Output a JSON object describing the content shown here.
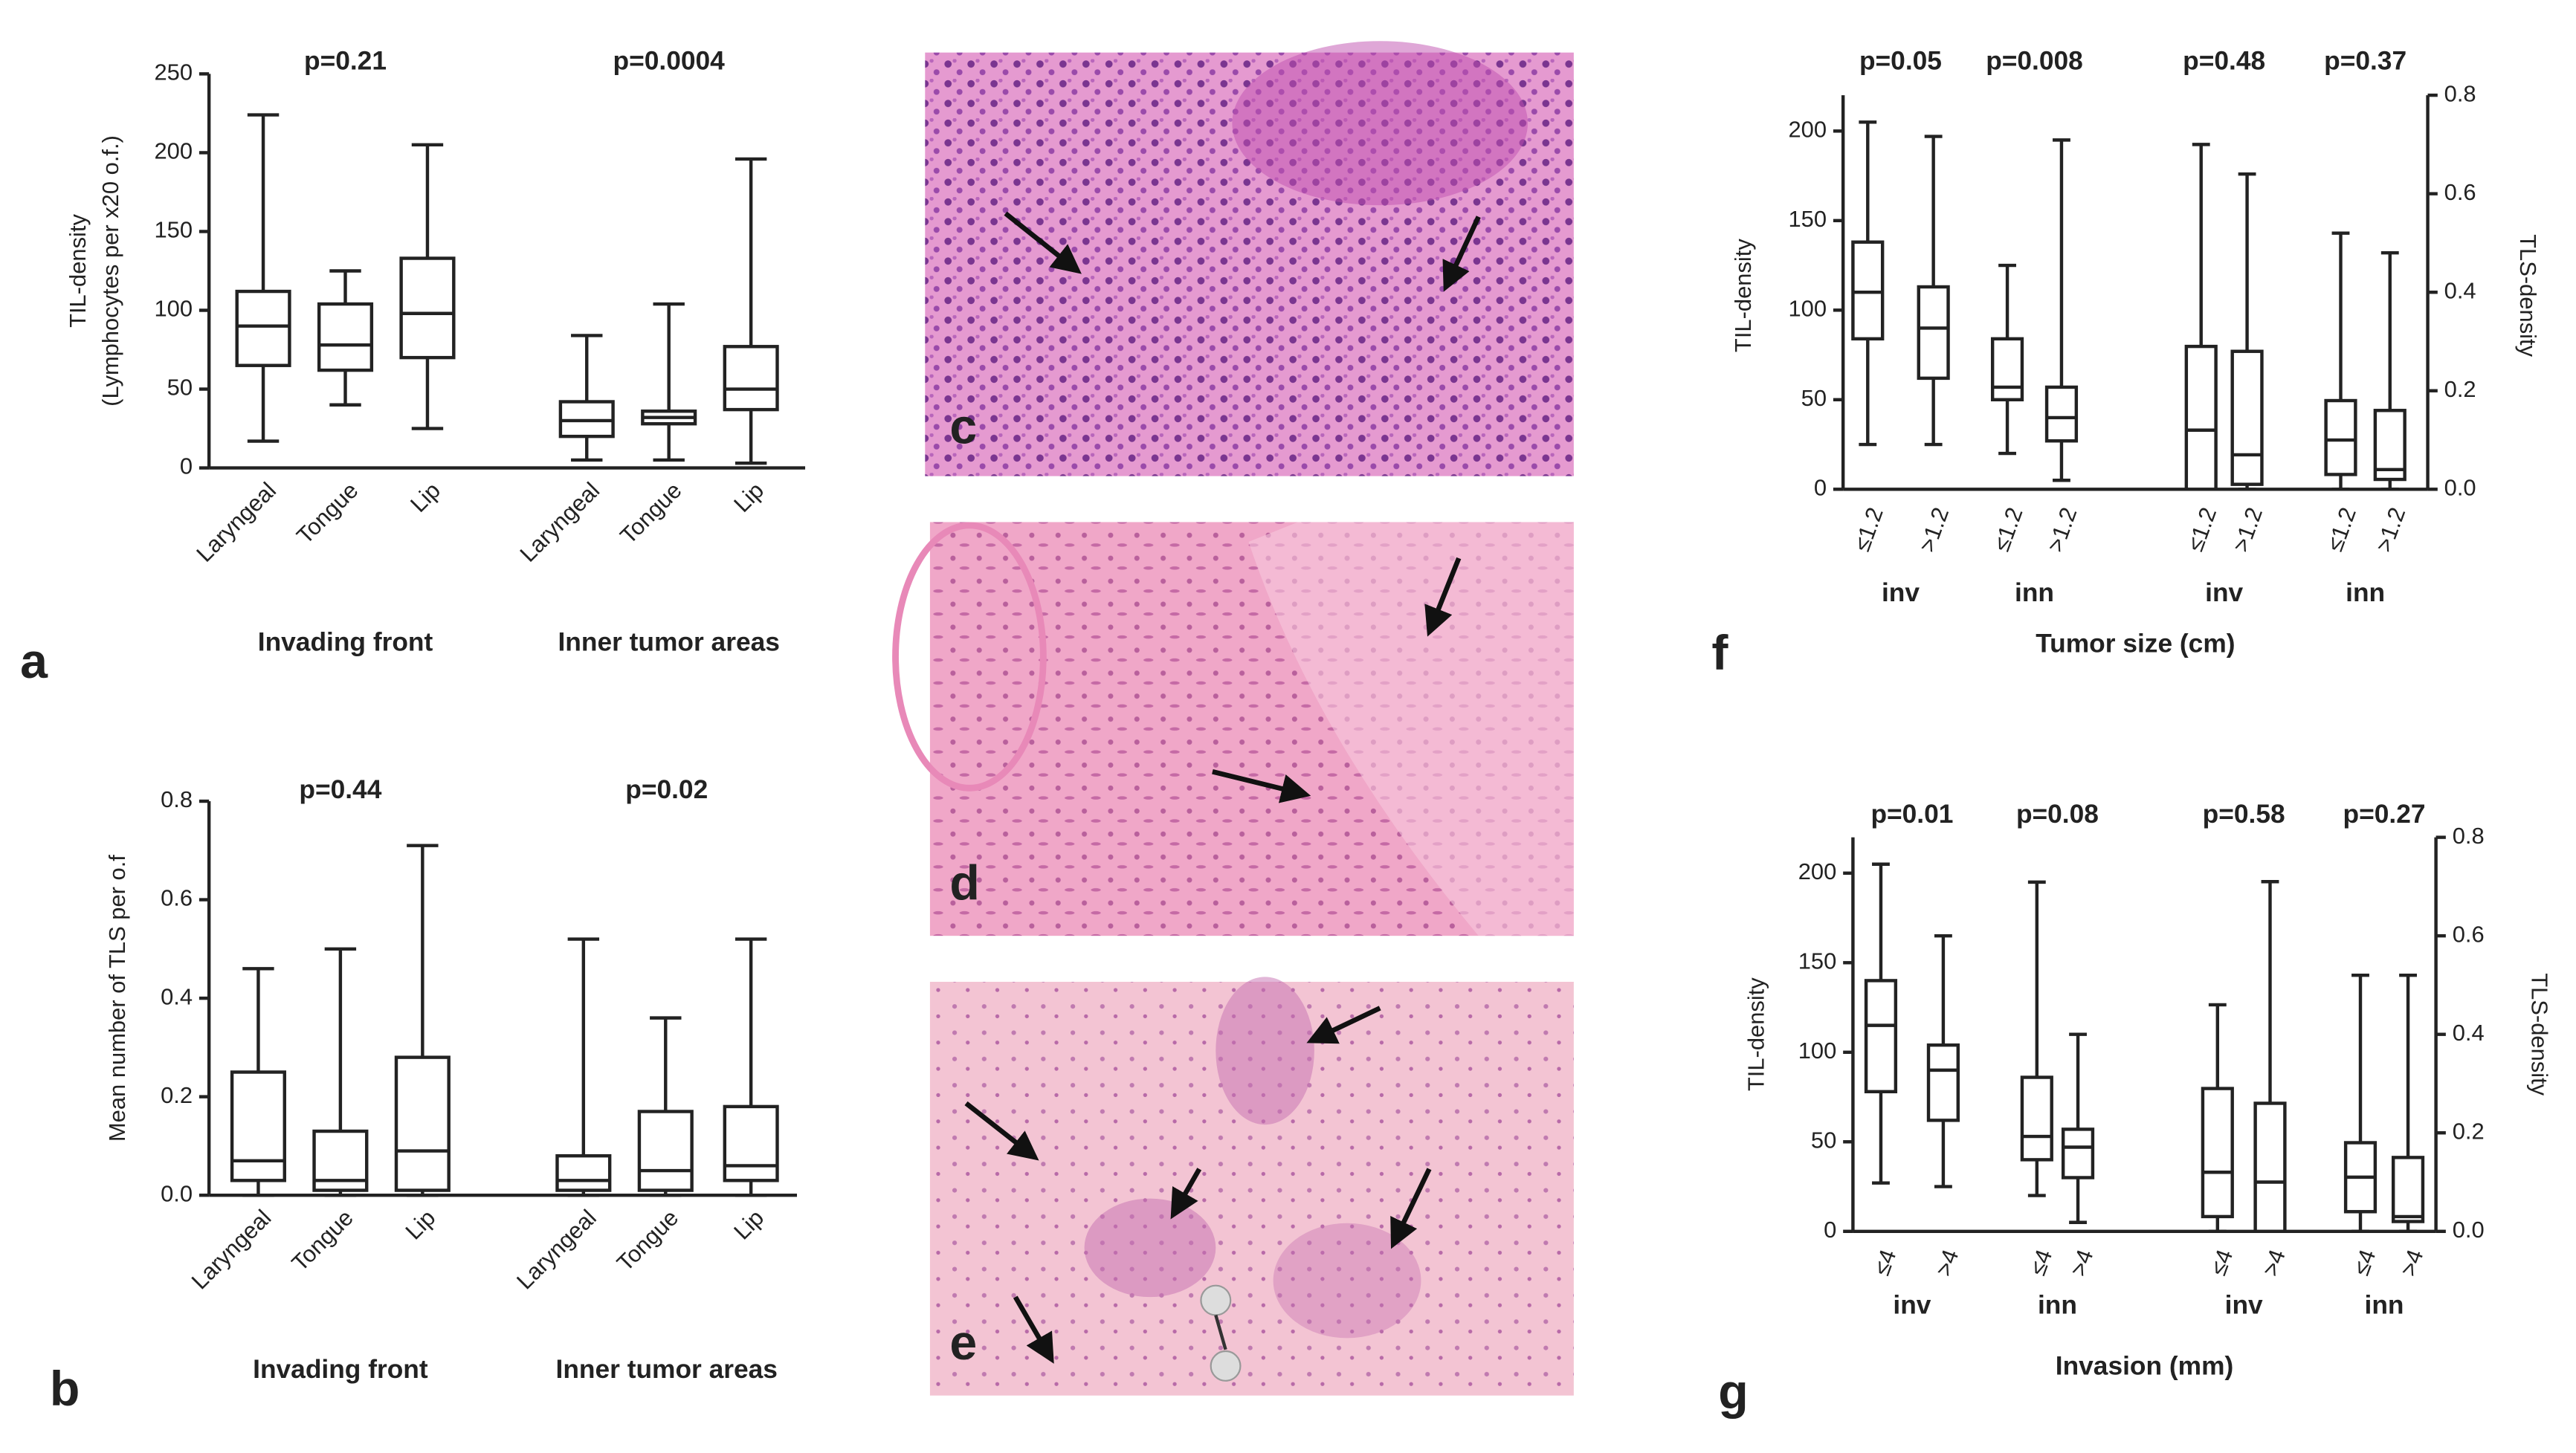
{
  "chart_data": [
    {
      "type": "box",
      "ylabel": [
        "TIL-density",
        "(Lymphocytes per x20 o.f.)"
      ],
      "ylim": [
        0,
        250
      ],
      "yticks": [
        0,
        50,
        100,
        150,
        200,
        250
      ],
      "groups": [
        {
          "label": "Invading front",
          "p": "p=0.21",
          "categories": [
            "Laryngeal",
            "Tongue",
            "Lip"
          ],
          "boxes": [
            {
              "min": 17,
              "q1": 65,
              "median": 90,
              "q3": 112,
              "max": 224
            },
            {
              "min": 40,
              "q1": 62,
              "median": 78,
              "q3": 104,
              "max": 125
            },
            {
              "min": 25,
              "q1": 70,
              "median": 98,
              "q3": 133,
              "max": 205
            }
          ]
        },
        {
          "label": "Inner tumor areas",
          "p": "p=0.0004",
          "categories": [
            "Laryngeal",
            "Tongue",
            "Lip"
          ],
          "boxes": [
            {
              "min": 5,
              "q1": 20,
              "median": 30,
              "q3": 42,
              "max": 84
            },
            {
              "min": 5,
              "q1": 28,
              "median": 32,
              "q3": 36,
              "max": 104
            },
            {
              "min": 3,
              "q1": 37,
              "median": 50,
              "q3": 77,
              "max": 196
            }
          ]
        }
      ]
    },
    {
      "type": "box",
      "ylabel": [
        "Mean number of TLS per o.f"
      ],
      "ylim": [
        0,
        0.8
      ],
      "yticks": [
        {
          "value": 0,
          "label": "0.0"
        },
        0.2,
        0.4,
        0.6,
        0.8
      ],
      "groups": [
        {
          "label": "Invading front",
          "p": "p=0.44",
          "categories": [
            "Laryngeal",
            "Tongue",
            "Lip"
          ],
          "boxes": [
            {
              "min": 0,
              "q1": 0.03,
              "median": 0.07,
              "q3": 0.25,
              "max": 0.46
            },
            {
              "min": 0,
              "q1": 0.01,
              "median": 0.03,
              "q3": 0.13,
              "max": 0.5
            },
            {
              "min": 0,
              "q1": 0.01,
              "median": 0.09,
              "q3": 0.28,
              "max": 0.71
            }
          ]
        },
        {
          "label": "Inner tumor areas",
          "p": "p=0.02",
          "categories": [
            "Laryngeal",
            "Tongue",
            "Lip"
          ],
          "boxes": [
            {
              "min": 0,
              "q1": 0.01,
              "median": 0.03,
              "q3": 0.08,
              "max": 0.52
            },
            {
              "min": 0,
              "q1": 0.01,
              "median": 0.05,
              "q3": 0.17,
              "max": 0.36
            },
            {
              "min": 0,
              "q1": 0.03,
              "median": 0.06,
              "q3": 0.18,
              "max": 0.52
            }
          ]
        }
      ]
    },
    {
      "type": "box",
      "ylabel": [
        "TIL-density"
      ],
      "y2label": "TLS-density",
      "xlabel": "Tumor size (cm)",
      "ylim": [
        0,
        220
      ],
      "yticks": [
        0,
        50,
        100,
        150,
        200
      ],
      "y2lim": [
        0,
        0.8
      ],
      "y2ticks": [
        {
          "value": 0,
          "label": "0.0"
        },
        0.2,
        0.4,
        0.6,
        0.8
      ],
      "groups": [
        {
          "label": "inv",
          "p": "p=0.05",
          "axis": "y",
          "categories": [
            "≤1.2",
            ">1.2"
          ],
          "boxes": [
            {
              "min": 25,
              "q1": 84,
              "median": 110,
              "q3": 138,
              "max": 205
            },
            {
              "min": 25,
              "q1": 62,
              "median": 90,
              "q3": 113,
              "max": 197
            }
          ]
        },
        {
          "label": "inn",
          "p": "p=0.008",
          "axis": "y",
          "categories": [
            "≤1.2",
            ">1.2"
          ],
          "boxes": [
            {
              "min": 20,
              "q1": 50,
              "median": 57,
              "q3": 84,
              "max": 125
            },
            {
              "min": 5,
              "q1": 27,
              "median": 40,
              "q3": 57,
              "max": 195
            }
          ]
        },
        {
          "label": "inv",
          "p": "p=0.48",
          "axis": "y2",
          "categories": [
            "≤1.2",
            ">1.2"
          ],
          "boxes": [
            {
              "min": 0,
              "q1": 0,
              "median": 0.12,
              "q3": 0.29,
              "max": 0.7
            },
            {
              "min": 0,
              "q1": 0.01,
              "median": 0.07,
              "q3": 0.28,
              "max": 0.64
            }
          ]
        },
        {
          "label": "inn",
          "p": "p=0.37",
          "axis": "y2",
          "categories": [
            "≤1.2",
            ">1.2"
          ],
          "boxes": [
            {
              "min": 0,
              "q1": 0.03,
              "median": 0.1,
              "q3": 0.18,
              "max": 0.52
            },
            {
              "min": 0,
              "q1": 0.02,
              "median": 0.04,
              "q3": 0.16,
              "max": 0.48
            }
          ]
        }
      ]
    },
    {
      "type": "box",
      "ylabel": [
        "TIL-density"
      ],
      "y2label": "TLS-density",
      "xlabel": "Invasion (mm)",
      "ylim": [
        0,
        220
      ],
      "yticks": [
        0,
        50,
        100,
        150,
        200
      ],
      "y2lim": [
        0,
        0.8
      ],
      "y2ticks": [
        {
          "value": 0,
          "label": "0.0"
        },
        0.2,
        0.4,
        0.6,
        0.8
      ],
      "groups": [
        {
          "label": "inv",
          "p": "p=0.01",
          "axis": "y",
          "categories": [
            "≤4",
            ">4"
          ],
          "boxes": [
            {
              "min": 27,
              "q1": 78,
              "median": 115,
              "q3": 140,
              "max": 205
            },
            {
              "min": 25,
              "q1": 62,
              "median": 90,
              "q3": 104,
              "max": 165
            }
          ]
        },
        {
          "label": "inn",
          "p": "p=0.08",
          "axis": "y",
          "categories": [
            "≤4",
            ">4"
          ],
          "boxes": [
            {
              "min": 20,
              "q1": 40,
              "median": 53,
              "q3": 86,
              "max": 195
            },
            {
              "min": 5,
              "q1": 30,
              "median": 47,
              "q3": 57,
              "max": 110
            }
          ]
        },
        {
          "label": "inv",
          "p": "p=0.58",
          "axis": "y2",
          "categories": [
            "≤4",
            ">4"
          ],
          "boxes": [
            {
              "min": 0,
              "q1": 0.03,
              "median": 0.12,
              "q3": 0.29,
              "max": 0.46
            },
            {
              "min": 0,
              "q1": 0,
              "median": 0.1,
              "q3": 0.26,
              "max": 0.71
            }
          ]
        },
        {
          "label": "inn",
          "p": "p=0.27",
          "axis": "y2",
          "categories": [
            "≤4",
            ">4"
          ],
          "boxes": [
            {
              "min": 0,
              "q1": 0.04,
              "median": 0.11,
              "q3": 0.18,
              "max": 0.52
            },
            {
              "min": 0,
              "q1": 0.02,
              "median": 0.03,
              "q3": 0.15,
              "max": 0.52
            }
          ]
        }
      ]
    }
  ],
  "panel_labels": [
    "a",
    "b",
    "c",
    "d",
    "e",
    "f",
    "g"
  ]
}
